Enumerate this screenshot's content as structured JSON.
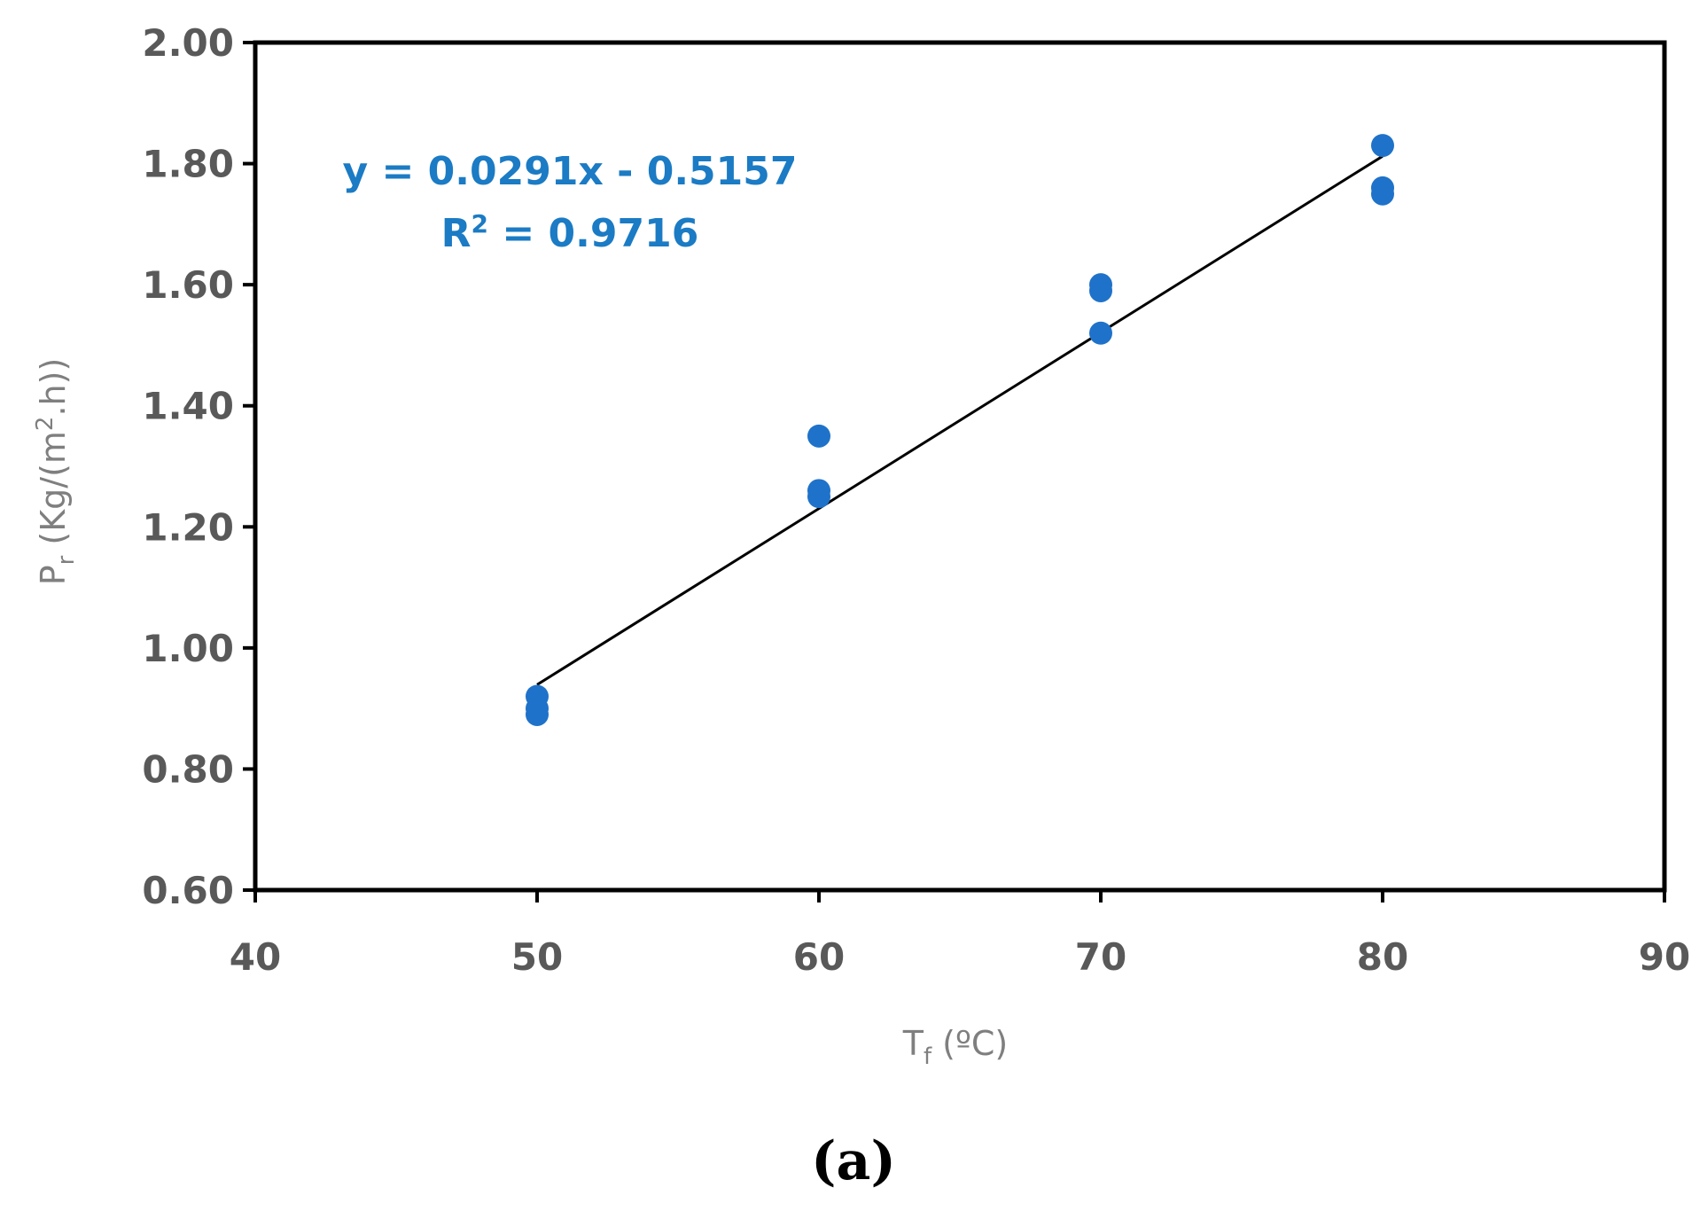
{
  "chart_data": {
    "type": "scatter",
    "title": "",
    "xlabel": {
      "main": "T",
      "sub": "f",
      "rest": " (ºC)"
    },
    "ylabel": {
      "main": "P",
      "sub": "r",
      "rest1": " (Kg/(m",
      "sup": "2",
      "rest2": ".h))"
    },
    "xlim": [
      40,
      90
    ],
    "ylim": [
      0.6,
      2.0
    ],
    "x_ticks": [
      "40",
      "50",
      "60",
      "70",
      "80",
      "90"
    ],
    "y_ticks": [
      "0.60",
      "0.80",
      "1.00",
      "1.20",
      "1.40",
      "1.60",
      "1.80",
      "2.00"
    ],
    "grid": false,
    "series": [
      {
        "points": [
          {
            "x": 50,
            "y": 0.92
          },
          {
            "x": 50,
            "y": 0.9
          },
          {
            "x": 50,
            "y": 0.89
          },
          {
            "x": 60,
            "y": 1.35
          },
          {
            "x": 60,
            "y": 1.26
          },
          {
            "x": 60,
            "y": 1.25
          },
          {
            "x": 70,
            "y": 1.6
          },
          {
            "x": 70,
            "y": 1.59
          },
          {
            "x": 70,
            "y": 1.52
          },
          {
            "x": 80,
            "y": 1.83
          },
          {
            "x": 80,
            "y": 1.76
          },
          {
            "x": 80,
            "y": 1.75
          }
        ],
        "color": "#1f72c9"
      }
    ],
    "trendline": {
      "slope": 0.0291,
      "intercept": -0.5157,
      "x_range": [
        50,
        80
      ],
      "color": "#000000"
    },
    "annotation": {
      "equation": "y = 0.0291x - 0.5157",
      "r2_prefix": "R",
      "r2_sup": "2",
      "r2_rest": " = 0.9716",
      "color": "#1b7bc4"
    },
    "caption": "(a)"
  }
}
